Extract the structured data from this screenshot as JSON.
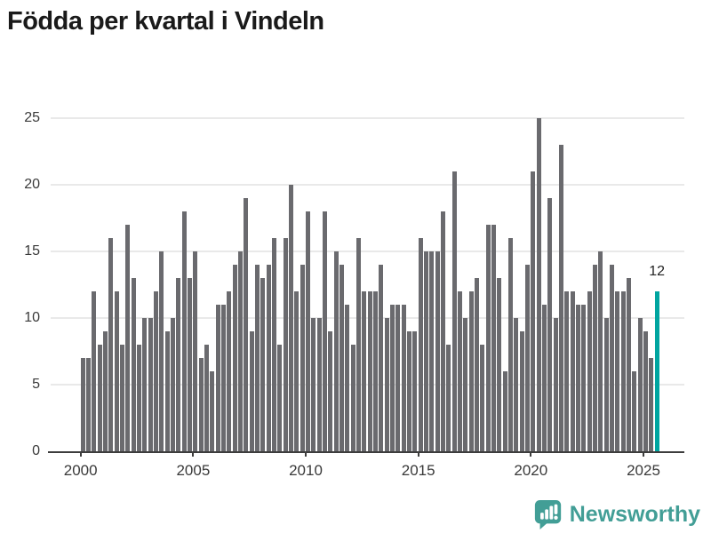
{
  "title": "Födda per kvartal i Vindeln",
  "annotation_label": "12",
  "footer": {
    "brand": "Newsworthy"
  },
  "colors": {
    "bar": "#6a6a6e",
    "highlight": "#00a5a0",
    "logo_teal": "#429e96",
    "axis": "#3d3d3d",
    "grid": "#e9e9e9",
    "title_text": "#1a1a1a",
    "tick_text": "#3a3a3a"
  },
  "chart_data": {
    "type": "bar",
    "title": "Födda per kvartal i Vindeln",
    "xlabel": "",
    "ylabel": "",
    "start_period": "2000 Q1",
    "end_period": "2025 Q3",
    "values": [
      7,
      7,
      12,
      8,
      9,
      16,
      12,
      8,
      17,
      13,
      8,
      10,
      10,
      12,
      15,
      9,
      10,
      13,
      18,
      13,
      15,
      7,
      8,
      6,
      11,
      11,
      12,
      14,
      15,
      19,
      9,
      14,
      13,
      14,
      16,
      8,
      16,
      20,
      12,
      14,
      18,
      10,
      10,
      18,
      9,
      15,
      14,
      11,
      8,
      16,
      12,
      12,
      12,
      14,
      10,
      11,
      11,
      11,
      9,
      9,
      16,
      15,
      15,
      15,
      18,
      8,
      21,
      12,
      10,
      12,
      13,
      8,
      17,
      17,
      13,
      6,
      16,
      10,
      9,
      14,
      21,
      25,
      11,
      19,
      10,
      23,
      12,
      12,
      11,
      11,
      12,
      14,
      15,
      10,
      14,
      12,
      12,
      13,
      6,
      10,
      9,
      7,
      12
    ],
    "highlight_index": 102,
    "highlight_value": 12,
    "highlight_annotation": "12",
    "y_ticks": [
      0,
      5,
      10,
      15,
      20,
      25
    ],
    "ylim": [
      0,
      25
    ],
    "x_ticks": [
      {
        "label": "2000",
        "quarter_index": 0
      },
      {
        "label": "2005",
        "quarter_index": 20
      },
      {
        "label": "2010",
        "quarter_index": 40
      },
      {
        "label": "2015",
        "quarter_index": 60
      },
      {
        "label": "2020",
        "quarter_index": 80
      },
      {
        "label": "2025",
        "quarter_index": 100
      }
    ],
    "grid": true,
    "legend": false
  }
}
